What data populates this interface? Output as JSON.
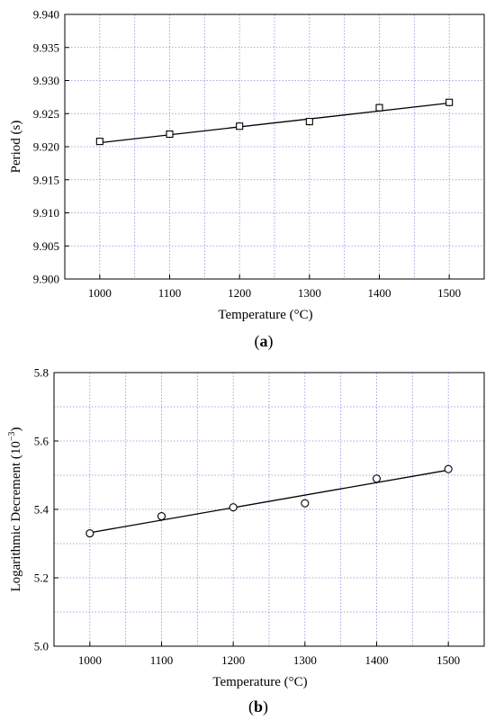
{
  "chart_data": [
    {
      "type": "scatter",
      "panel_label": "a",
      "xlabel": "Temperature (°C)",
      "ylabel": "Period (s)",
      "xlim": [
        950,
        1550
      ],
      "ylim": [
        9.9,
        9.94
      ],
      "x_ticks": [
        1000,
        1100,
        1200,
        1300,
        1400,
        1500
      ],
      "y_ticks": [
        "9.900",
        "9.905",
        "9.910",
        "9.915",
        "9.920",
        "9.925",
        "9.930",
        "9.935",
        "9.940"
      ],
      "grid": true,
      "marker": "square",
      "x": [
        1000,
        1100,
        1200,
        1300,
        1400,
        1500
      ],
      "y": [
        9.9208,
        9.9219,
        9.9231,
        9.9238,
        9.9259,
        9.9267
      ],
      "fit_line": {
        "x": [
          1000,
          1500
        ],
        "y": [
          9.9206,
          9.9266
        ]
      }
    },
    {
      "type": "scatter",
      "panel_label": "b",
      "xlabel": "Temperature (°C)",
      "ylabel_main": "Logarithmic Decrement (10",
      "ylabel_sup": "−3",
      "ylabel_close": ")",
      "xlim": [
        950,
        1550
      ],
      "ylim": [
        5.0,
        5.8
      ],
      "x_ticks": [
        1000,
        1100,
        1200,
        1300,
        1400,
        1500
      ],
      "y_ticks": [
        "5.0",
        "5.2",
        "5.4",
        "5.6",
        "5.8"
      ],
      "grid": true,
      "marker": "circle",
      "x": [
        1000,
        1100,
        1200,
        1300,
        1400,
        1500
      ],
      "y": [
        5.33,
        5.38,
        5.406,
        5.418,
        5.49,
        5.518
      ],
      "fit_line": {
        "x": [
          1000,
          1500
        ],
        "y": [
          5.332,
          5.515
        ]
      }
    }
  ]
}
